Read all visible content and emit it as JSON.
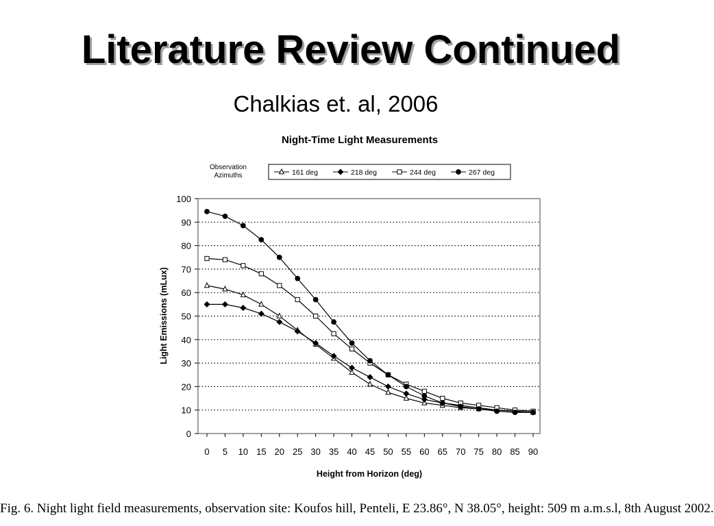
{
  "slide": {
    "title": "Literature Review Continued",
    "subtitle": "Chalkias et. al, 2006",
    "caption": "Fig. 6. Night light field measurements, observation site: Koufos hill, Penteli, E 23.86°, N 38.05°, height: 509 m a.m.s.l, 8th August 2002."
  },
  "chart_data": {
    "type": "line",
    "title": "Night-Time Light Measurements",
    "legend_title": "Observation Azimuths",
    "legend_position": "top",
    "xlabel": "Height from Horizon (deg)",
    "ylabel": "Light Emissions (mLux)",
    "xlim": [
      0,
      90
    ],
    "ylim": [
      0,
      100
    ],
    "x_ticks": [
      0,
      5,
      10,
      15,
      20,
      25,
      30,
      35,
      40,
      45,
      50,
      55,
      60,
      65,
      70,
      75,
      80,
      85,
      90
    ],
    "y_ticks": [
      0,
      10,
      20,
      30,
      40,
      50,
      60,
      70,
      80,
      90,
      100
    ],
    "grid": "horizontal-dotted",
    "x": [
      0,
      5,
      10,
      15,
      20,
      25,
      30,
      35,
      40,
      45,
      50,
      55,
      60,
      65,
      70,
      75,
      80,
      85,
      90
    ],
    "series": [
      {
        "name": "161 deg",
        "marker": "triangle-open",
        "values": [
          63,
          61.5,
          59,
          55,
          50,
          44,
          38,
          32,
          26,
          21,
          17.5,
          15,
          13,
          12,
          11,
          10.5,
          10,
          9.5,
          9
        ]
      },
      {
        "name": "218 deg",
        "marker": "diamond-filled",
        "values": [
          55,
          55,
          53.5,
          51,
          47.5,
          43.5,
          38.5,
          33,
          28,
          24,
          20,
          17,
          14.5,
          13,
          12,
          11,
          10,
          9.5,
          9
        ]
      },
      {
        "name": "244 deg",
        "marker": "square-open",
        "values": [
          74.5,
          74,
          71.5,
          68,
          63,
          57,
          50,
          42.5,
          36,
          30,
          25,
          21,
          18,
          15,
          13,
          12,
          11,
          10,
          9.5
        ]
      },
      {
        "name": "267 deg",
        "marker": "circle-filled",
        "values": [
          94.5,
          92.5,
          88.5,
          82.5,
          75,
          66,
          57,
          47.5,
          38.5,
          31,
          25,
          20,
          16,
          13,
          11.5,
          10.5,
          9.5,
          9,
          9
        ]
      }
    ]
  }
}
